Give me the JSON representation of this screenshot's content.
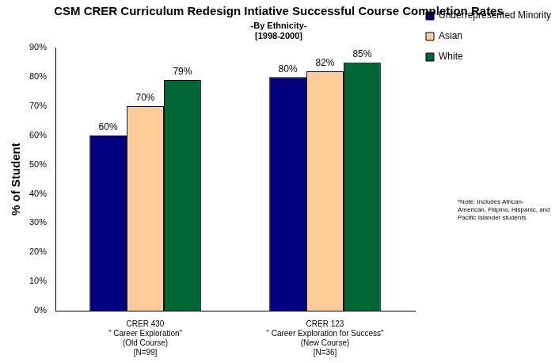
{
  "chart_data": {
    "type": "bar",
    "title": "CSM CRER Curriculum Redesign Intiative Successful Course Completion Rates",
    "subtitle": [
      "-By Ethnicity-",
      "[1998-2000]"
    ],
    "y_label": "% of Student",
    "categories": [
      [
        "CRER 430",
        "\" Career Exploration\"",
        "(Old Course)",
        "[N=99]"
      ],
      [
        "CRER 123",
        "\" Career Exploration for Success\"",
        "(New Course)",
        "[N=36]"
      ]
    ],
    "series": [
      {
        "name": "Underrepresented Minority*",
        "color": "#000080",
        "values": [
          60,
          80
        ],
        "value_labels": [
          "60%",
          "80%"
        ]
      },
      {
        "name": "Asian",
        "color": "#ffcc99",
        "values": [
          70,
          82
        ],
        "value_labels": [
          "70%",
          "82%"
        ]
      },
      {
        "name": "White",
        "color": "#006633",
        "values": [
          79,
          85
        ],
        "value_labels": [
          "79%",
          "85%"
        ]
      }
    ],
    "ylim": [
      0,
      90
    ],
    "yticks": [
      {
        "value": 0,
        "label": "0%"
      },
      {
        "value": 10,
        "label": "10%"
      },
      {
        "value": 20,
        "label": "20%"
      },
      {
        "value": 30,
        "label": "30%"
      },
      {
        "value": 40,
        "label": "40%"
      },
      {
        "value": 50,
        "label": "50%"
      },
      {
        "value": 60,
        "label": "60%"
      },
      {
        "value": 70,
        "label": "70%"
      },
      {
        "value": 80,
        "label": "80%"
      },
      {
        "value": 90,
        "label": "90%"
      }
    ],
    "grid": false,
    "legend": "right",
    "data_labels": true,
    "annotation": "*Note: Includes African-American, Filipino, Hispanic, and Pacific Islander students"
  }
}
